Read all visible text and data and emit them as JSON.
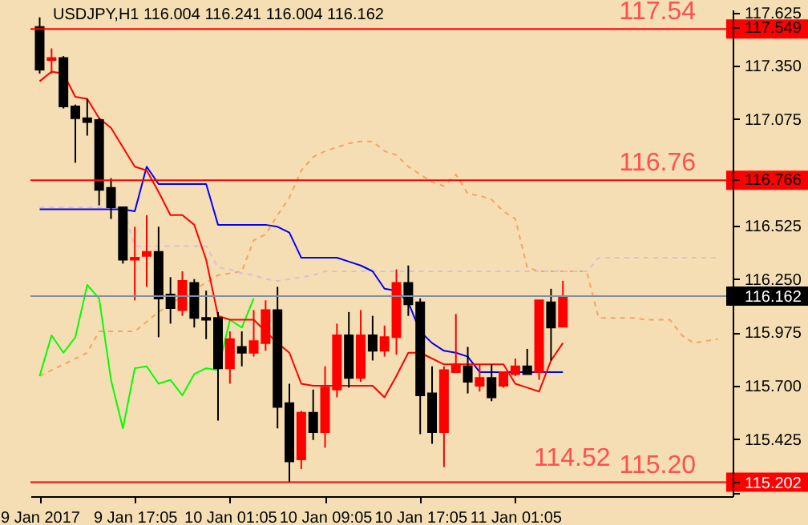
{
  "chart_data": {
    "type": "candlestick",
    "title": "USDJPY,H1  116.004 116.241 116.004 116.162",
    "categories": [
      "9 Jan 2017",
      null,
      null,
      null,
      null,
      null,
      null,
      null,
      "9 Jan 17:05",
      null,
      null,
      null,
      null,
      null,
      null,
      null,
      "10 Jan 01:05",
      null,
      null,
      null,
      null,
      null,
      null,
      null,
      "10 Jan 09:05",
      null,
      null,
      null,
      null,
      null,
      null,
      null,
      "10 Jan 17:05",
      null,
      null,
      null,
      null,
      null,
      null,
      null,
      "11 Jan 01:05",
      null,
      null,
      null,
      null,
      null,
      null,
      null,
      null,
      null,
      null,
      null,
      null,
      null,
      null,
      null,
      null,
      null
    ],
    "ohlc": [
      [
        117.55,
        117.6,
        117.31,
        117.33
      ],
      [
        117.38,
        117.44,
        117.31,
        117.39
      ],
      [
        117.39,
        117.4,
        117.13,
        117.14
      ],
      [
        117.14,
        117.15,
        116.85,
        117.08
      ],
      [
        117.08,
        117.18,
        116.99,
        117.06
      ],
      [
        117.07,
        117.08,
        116.63,
        116.71
      ],
      [
        116.72,
        116.77,
        116.56,
        116.62
      ],
      [
        116.62,
        116.62,
        116.33,
        116.35
      ],
      [
        116.35,
        116.52,
        116.14,
        116.36
      ],
      [
        116.37,
        116.58,
        116.21,
        116.39
      ],
      [
        116.39,
        116.52,
        115.95,
        116.15
      ],
      [
        116.17,
        116.26,
        116.02,
        116.1
      ],
      [
        116.09,
        116.29,
        116.06,
        116.24
      ],
      [
        116.23,
        116.25,
        116.0,
        116.05
      ],
      [
        116.05,
        116.19,
        115.94,
        116.04
      ],
      [
        116.05,
        116.08,
        115.52,
        115.79
      ],
      [
        115.79,
        115.98,
        115.71,
        115.94
      ],
      [
        115.9,
        115.98,
        115.8,
        115.87
      ],
      [
        115.87,
        116.09,
        115.85,
        115.93
      ],
      [
        115.92,
        116.14,
        115.88,
        116.09
      ],
      [
        116.09,
        116.21,
        115.48,
        115.59
      ],
      [
        115.61,
        115.71,
        115.2,
        115.31
      ],
      [
        115.32,
        115.57,
        115.27,
        115.56
      ],
      [
        115.56,
        115.68,
        115.42,
        115.46
      ],
      [
        115.46,
        115.8,
        115.38,
        115.69
      ],
      [
        115.68,
        116.02,
        115.64,
        115.96
      ],
      [
        115.96,
        116.08,
        115.69,
        115.74
      ],
      [
        115.74,
        116.09,
        115.72,
        115.96
      ],
      [
        115.96,
        116.06,
        115.83,
        115.88
      ],
      [
        115.88,
        116.01,
        115.85,
        115.95
      ],
      [
        115.95,
        116.3,
        115.86,
        116.23
      ],
      [
        116.23,
        116.32,
        116.06,
        116.12
      ],
      [
        116.13,
        116.15,
        115.45,
        115.65
      ],
      [
        115.66,
        115.8,
        115.4,
        115.46
      ],
      [
        115.46,
        115.8,
        115.28,
        115.78
      ],
      [
        115.77,
        116.07,
        115.77,
        115.81
      ],
      [
        115.8,
        115.9,
        115.66,
        115.72
      ],
      [
        115.7,
        115.81,
        115.67,
        115.74
      ],
      [
        115.74,
        115.81,
        115.62,
        115.64
      ],
      [
        115.7,
        115.77,
        115.69,
        115.77
      ],
      [
        115.76,
        115.84,
        115.75,
        115.8
      ],
      [
        115.8,
        115.89,
        115.76,
        115.76
      ],
      [
        115.77,
        116.14,
        115.73,
        116.14
      ],
      [
        116.13,
        116.2,
        115.83,
        116.0
      ],
      [
        116.004,
        116.241,
        116.004,
        116.162
      ],
      null,
      null,
      null,
      null,
      null,
      null,
      null,
      null,
      null,
      null,
      null,
      null,
      null
    ],
    "colors": [
      "#000000",
      "#ff0000",
      "#000000",
      "#000000",
      "#000000",
      "#000000",
      "#000000",
      "#000000",
      "#ff0000",
      "#ff0000",
      "#000000",
      "#000000",
      "#ff0000",
      "#000000",
      "#000000",
      "#000000",
      "#ff0000",
      "#000000",
      "#ff0000",
      "#ff0000",
      "#000000",
      "#000000",
      "#ff0000",
      "#000000",
      "#ff0000",
      "#ff0000",
      "#000000",
      "#ff0000",
      "#000000",
      "#ff0000",
      "#ff0000",
      "#000000",
      "#000000",
      "#000000",
      "#ff0000",
      "#ff0000",
      "#000000",
      "#ff0000",
      "#000000",
      "#ff0000",
      "#ff0000",
      "#000000",
      "#ff0000",
      "#000000",
      "#ff0000",
      null,
      null,
      null,
      null,
      null,
      null,
      null,
      null,
      null,
      null,
      null,
      null,
      null
    ],
    "series": [
      {
        "type": "line",
        "color": "#f4a460",
        "line_style": "dashed",
        "values": [
          115.75,
          115.78,
          115.81,
          115.84,
          115.87,
          115.98,
          115.98,
          115.98,
          115.98,
          116.03,
          116.08,
          116.12,
          116.16,
          116.2,
          116.23,
          116.27,
          116.28,
          116.29,
          116.45,
          116.48,
          116.58,
          116.67,
          116.81,
          116.88,
          116.91,
          116.93,
          116.95,
          116.96,
          116.96,
          116.91,
          116.89,
          116.83,
          116.79,
          116.75,
          116.73,
          116.79,
          116.69,
          116.68,
          116.66,
          116.6,
          116.56,
          116.31,
          116.29,
          116.29,
          116.29,
          116.29,
          116.29,
          116.05,
          116.05,
          116.05,
          116.05,
          116.04,
          116.04,
          116.04,
          115.96,
          115.92,
          115.93,
          115.94
        ]
      },
      {
        "type": "line",
        "color": "#d8bfd8",
        "line_style": "dashed",
        "values": [
          116.62,
          116.62,
          116.62,
          116.62,
          116.62,
          116.62,
          116.62,
          116.62,
          116.42,
          116.42,
          116.42,
          116.42,
          116.42,
          116.42,
          116.42,
          116.31,
          116.3,
          116.28,
          116.27,
          116.25,
          116.24,
          116.25,
          116.26,
          116.27,
          116.29,
          116.29,
          116.29,
          116.29,
          116.29,
          116.29,
          116.29,
          116.29,
          116.29,
          116.29,
          116.29,
          116.29,
          116.29,
          116.29,
          116.29,
          116.29,
          116.29,
          116.29,
          116.29,
          116.29,
          116.29,
          116.29,
          116.29,
          116.36,
          116.36,
          116.36,
          116.36,
          116.36,
          116.36,
          116.36,
          116.36,
          116.36,
          116.36,
          116.36
        ]
      },
      {
        "type": "line",
        "color": "#00ff00",
        "values": [
          115.75,
          115.96,
          115.87,
          115.95,
          116.22,
          116.15,
          115.73,
          115.48,
          115.79,
          115.8,
          115.71,
          115.73,
          115.65,
          115.76,
          115.79,
          115.78,
          116.04,
          116.0,
          116.15,
          null,
          null,
          null,
          null,
          null,
          null,
          null,
          null,
          null,
          null,
          null,
          null,
          null,
          null,
          null,
          null,
          null,
          null,
          null,
          null,
          null,
          null,
          null,
          null,
          null,
          null,
          null,
          null,
          null,
          null,
          null,
          null,
          null,
          null,
          null,
          null,
          null,
          null,
          null
        ]
      },
      {
        "type": "line",
        "color": "#0000ff",
        "values": [
          116.61,
          116.61,
          116.61,
          116.61,
          116.61,
          116.61,
          116.61,
          116.61,
          116.6,
          116.83,
          116.74,
          116.74,
          116.74,
          116.74,
          116.74,
          116.53,
          116.53,
          116.53,
          116.53,
          116.53,
          116.52,
          116.49,
          116.36,
          116.36,
          116.36,
          116.36,
          116.34,
          116.32,
          116.29,
          116.2,
          116.19,
          116.13,
          115.98,
          115.92,
          115.88,
          115.87,
          115.85,
          115.77,
          115.77,
          115.77,
          115.77,
          115.77,
          115.77,
          115.77,
          115.77,
          null,
          null,
          null,
          null,
          null,
          null,
          null,
          null,
          null,
          null,
          null,
          null,
          null
        ]
      },
      {
        "type": "line",
        "color": "#ff0000",
        "values": [
          117.27,
          117.32,
          117.31,
          117.19,
          117.18,
          117.08,
          117.03,
          116.93,
          116.83,
          116.81,
          116.7,
          116.58,
          116.58,
          116.53,
          116.35,
          116.06,
          116.04,
          116.04,
          116.04,
          115.98,
          115.92,
          115.87,
          115.71,
          115.7,
          115.7,
          115.7,
          115.7,
          115.7,
          115.7,
          115.64,
          115.75,
          115.87,
          115.87,
          115.84,
          115.81,
          115.81,
          115.81,
          115.81,
          115.81,
          115.81,
          115.71,
          115.69,
          115.67,
          115.83,
          115.92,
          null,
          null,
          null,
          null,
          null,
          null,
          null,
          null,
          null,
          null,
          null,
          null,
          null
        ]
      }
    ],
    "ref_lines": [
      {
        "axis": "y",
        "value": 117.54,
        "label": "117.54",
        "color": "#ff0000"
      },
      {
        "axis": "y",
        "value": 116.76,
        "label": "116.76",
        "color": "#ff0000"
      },
      {
        "axis": "y",
        "value": 115.202,
        "label": "115.20",
        "color": "#ff0000"
      },
      {
        "axis": "y",
        "value": 116.162,
        "color": "#7f8fa6"
      }
    ],
    "annotations": [
      "114.52"
    ],
    "ylim": [
      115.13,
      117.64
    ],
    "yticks": [
      {
        "value": 115.15,
        "label": null
      },
      115.202,
      {
        "value": 115.425,
        "label": "115.425"
      },
      {
        "value": 115.7,
        "label": "115.700"
      },
      {
        "value": 115.975,
        "label": "115.975"
      },
      116.162,
      {
        "value": 116.25,
        "label": "116.250"
      },
      {
        "value": 116.525,
        "label": "116.525"
      },
      116.766,
      {
        "value": 117.075,
        "label": "117.075"
      },
      {
        "value": 117.35,
        "label": "117.350"
      },
      117.549,
      {
        "value": 117.625,
        "label": "117.625"
      }
    ]
  }
}
